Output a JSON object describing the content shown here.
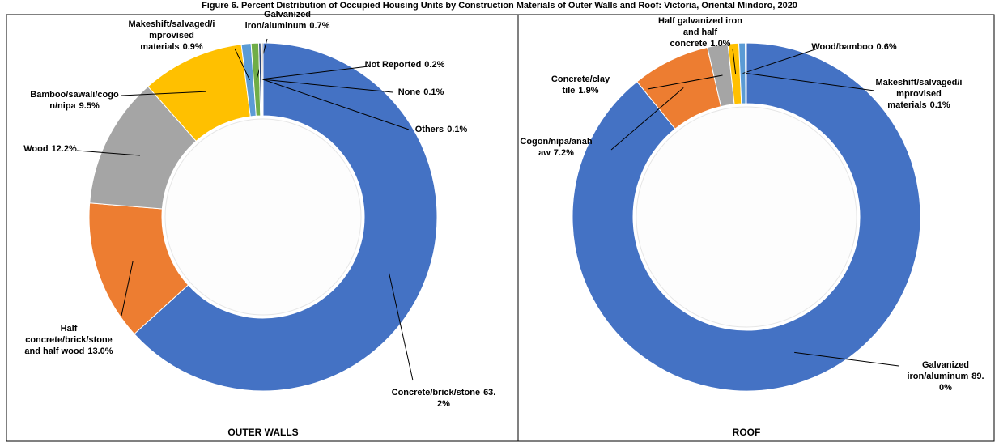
{
  "title": "Figure 6. Percent Distribution of Occupied Housing Units by Construction Materials of Outer Walls and Roof: Victoria, Oriental Mindoro, 2020",
  "chart_data": [
    {
      "type": "donut",
      "title": "OUTER WALLS",
      "categories": [
        "Concrete/brick/stone",
        "Half concrete/brick/stone and half wood",
        "Wood",
        "Bamboo/sawali/cogon/nipa",
        "Makeshift/salvaged/improvised materials",
        "Galvanized iron/aluminum",
        "Not Reported",
        "None",
        "Others"
      ],
      "values": [
        63.2,
        13.0,
        12.2,
        9.5,
        0.9,
        0.7,
        0.2,
        0.1,
        0.1
      ],
      "value_labels": [
        "63.2%",
        "13.0%",
        "12.2%",
        "9.5%",
        "0.9%",
        "0.7%",
        "0.2%",
        "0.1%",
        "0.1%"
      ],
      "colors": [
        "#4472c4",
        "#ed7d31",
        "#a5a5a5",
        "#ffc000",
        "#5b9bd5",
        "#70ad47",
        "#264478",
        "#9e480e",
        "#636363"
      ]
    },
    {
      "type": "donut",
      "title": "ROOF",
      "categories": [
        "Galvanized iron/aluminum",
        "Cogon/nipa/anahaw",
        "Concrete/clay tile",
        "Half galvanized iron and half concrete",
        "Wood/bamboo",
        "Makeshift/salvaged/improvised materials"
      ],
      "values": [
        89.0,
        7.2,
        1.9,
        1.0,
        0.6,
        0.1
      ],
      "value_labels": [
        "89.0%",
        "7.2%",
        "1.9%",
        "1.0%",
        "0.6%",
        "0.1%"
      ],
      "colors": [
        "#4472c4",
        "#ed7d31",
        "#a5a5a5",
        "#ffc000",
        "#5b9bd5",
        "#70ad47"
      ]
    }
  ]
}
